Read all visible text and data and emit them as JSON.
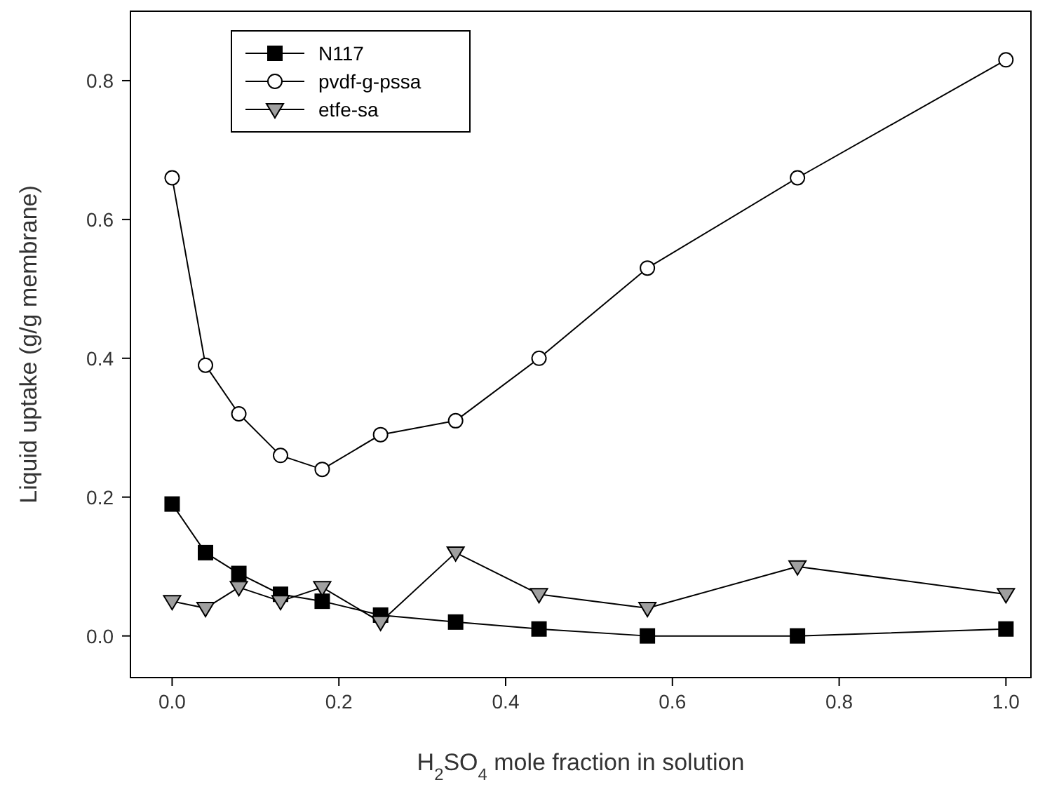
{
  "chart_data": {
    "type": "line",
    "xlabel": "H$_{2}$SO$_{4}$ mole fraction in solution",
    "ylabel": "Liquid uptake (g/g membrane)",
    "x": [
      0,
      0.04,
      0.08,
      0.13,
      0.18,
      0.25,
      0.34,
      0.44,
      0.57,
      0.75,
      1.0
    ],
    "series": [
      {
        "name": "N117",
        "color": "#000000",
        "marker": "square",
        "values": [
          0.19,
          0.12,
          0.09,
          0.06,
          0.05,
          0.03,
          0.02,
          0.01,
          0.0,
          0.0,
          0.01
        ]
      },
      {
        "name": "pvdf-g-pssa",
        "color": "#ffffff",
        "marker": "circle",
        "values": [
          0.66,
          0.39,
          0.32,
          0.26,
          0.24,
          0.29,
          0.31,
          0.4,
          0.53,
          0.66,
          0.83
        ]
      },
      {
        "name": "etfe-sa",
        "color": "#a0a0a0",
        "marker": "triangle",
        "values": [
          0.05,
          0.04,
          0.07,
          0.05,
          0.07,
          0.02,
          0.12,
          0.06,
          0.04,
          0.1,
          0.06
        ]
      }
    ],
    "xlim": [
      -0.05,
      1.03
    ],
    "ylim": [
      -0.06,
      0.9
    ],
    "xticks": [
      {
        "value": 0,
        "label": "0.0"
      },
      {
        "value": 0.2,
        "label": "0.2"
      },
      {
        "value": 0.4,
        "label": "0.4"
      },
      {
        "value": 0.6,
        "label": "0.6"
      },
      {
        "value": 0.8,
        "label": "0.8"
      },
      {
        "value": 1.0,
        "label": "1.0"
      }
    ],
    "yticks": [
      {
        "value": 0,
        "label": "0.0"
      },
      {
        "value": 0.2,
        "label": "0.2"
      },
      {
        "value": 0.4,
        "label": "0.4"
      },
      {
        "value": 0.6,
        "label": "0.6"
      },
      {
        "value": 0.8,
        "label": "0.8"
      }
    ],
    "grid": false,
    "legend": "top left",
    "line_style": "solid"
  }
}
